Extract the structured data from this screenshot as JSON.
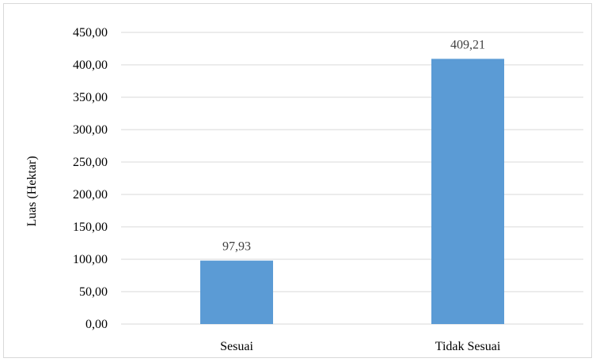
{
  "chart_data": {
    "type": "bar",
    "categories": [
      "Sesuai",
      "Tidak Sesuai"
    ],
    "values": [
      97.93,
      409.21
    ],
    "value_labels": [
      "97,93",
      "409,21"
    ],
    "ylabel": "Luas (Hektar)",
    "xlabel": "",
    "ylim": [
      0,
      450
    ],
    "yticks": [
      0,
      50,
      100,
      150,
      200,
      250,
      300,
      350,
      400,
      450
    ],
    "ytick_labels": [
      "0,00",
      "50,00",
      "100,00",
      "150,00",
      "200,00",
      "250,00",
      "300,00",
      "350,00",
      "400,00",
      "450,00"
    ],
    "grid": true,
    "legend": "none",
    "bar_color": "#5b9bd5",
    "gridline_color": "#d9d9d9"
  }
}
